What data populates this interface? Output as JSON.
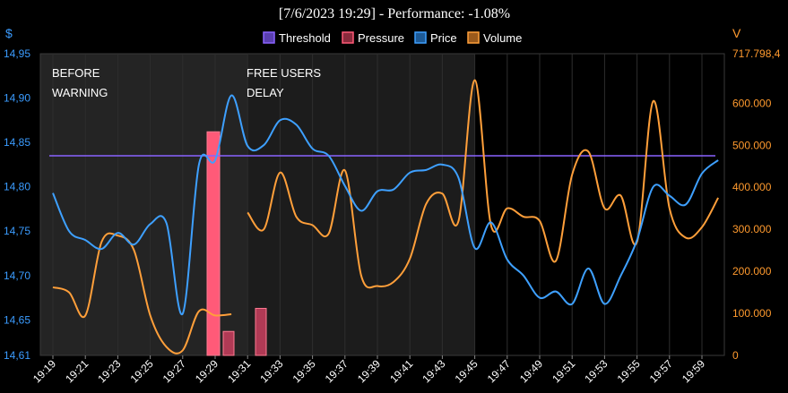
{
  "title": "[7/6/2023 19:29] - Performance: -1.08%",
  "colors": {
    "threshold": "#8a63ff",
    "pressure": "#ff5a78",
    "price": "#3ea0ff",
    "volume": "#ff9f3a",
    "left_axis": "#3b9cff",
    "right_axis": "#ff9a2e"
  },
  "chart_data": {
    "type": "line",
    "title": "[7/6/2023 19:29] - Performance: -1.08%",
    "left_axis_label": "$",
    "right_axis_label": "V",
    "legend": [
      "Threshold",
      "Pressure",
      "Price",
      "Volume"
    ],
    "legend_position": "top-center",
    "y_left": {
      "min": 14.61,
      "max": 14.95,
      "ticks": [
        "14,95",
        "14,90",
        "14,85",
        "14,80",
        "14,75",
        "14,70",
        "14,65",
        "14,61"
      ],
      "tick_values": [
        14.95,
        14.9,
        14.85,
        14.8,
        14.75,
        14.7,
        14.65,
        14.61
      ]
    },
    "y_right": {
      "min": 0,
      "max": 717798.4,
      "ticks": [
        "717.798,4",
        "600.000",
        "500.000",
        "400.000",
        "300.000",
        "200.000",
        "100.000",
        "0"
      ],
      "tick_values": [
        717798.4,
        600000,
        500000,
        400000,
        300000,
        200000,
        100000,
        0
      ]
    },
    "x_ticks": [
      "19:19",
      "19:21",
      "19:23",
      "19:25",
      "19:27",
      "19:29",
      "19:31",
      "19:33",
      "19:35",
      "19:37",
      "19:39",
      "19:41",
      "19:43",
      "19:45",
      "19:47",
      "19:49",
      "19:51",
      "19:53",
      "19:55",
      "19:57",
      "19:59"
    ],
    "x_range": [
      0,
      41.8
    ],
    "shaded_regions": [
      {
        "from": 0,
        "to": 12,
        "label": [
          "BEFORE",
          "WARNING"
        ]
      },
      {
        "from": 12,
        "to": 26,
        "label": [
          "FREE USERS",
          "DELAY"
        ]
      }
    ],
    "threshold": 14.835,
    "pressure": [
      {
        "x": 10,
        "value": 14.862
      },
      {
        "x": 11,
        "value": 14.637
      },
      {
        "x": 13,
        "value": 14.663
      }
    ],
    "price": [
      {
        "x": 0,
        "y": 14.793
      },
      {
        "x": 1,
        "y": 14.75
      },
      {
        "x": 2,
        "y": 14.74
      },
      {
        "x": 3,
        "y": 14.73
      },
      {
        "x": 4,
        "y": 14.748
      },
      {
        "x": 5,
        "y": 14.735
      },
      {
        "x": 6,
        "y": 14.758
      },
      {
        "x": 7,
        "y": 14.759
      },
      {
        "x": 8,
        "y": 14.657
      },
      {
        "x": 9,
        "y": 14.825
      },
      {
        "x": 10,
        "y": 14.83
      },
      {
        "x": 11,
        "y": 14.903
      },
      {
        "x": 12,
        "y": 14.846
      },
      {
        "x": 13,
        "y": 14.847
      },
      {
        "x": 14,
        "y": 14.875
      },
      {
        "x": 15,
        "y": 14.87
      },
      {
        "x": 16,
        "y": 14.843
      },
      {
        "x": 17,
        "y": 14.835
      },
      {
        "x": 18,
        "y": 14.801
      },
      {
        "x": 19,
        "y": 14.773
      },
      {
        "x": 20,
        "y": 14.795
      },
      {
        "x": 21,
        "y": 14.797
      },
      {
        "x": 22,
        "y": 14.816
      },
      {
        "x": 23,
        "y": 14.819
      },
      {
        "x": 24,
        "y": 14.825
      },
      {
        "x": 25,
        "y": 14.81
      },
      {
        "x": 26,
        "y": 14.731
      },
      {
        "x": 27,
        "y": 14.76
      },
      {
        "x": 28,
        "y": 14.718
      },
      {
        "x": 29,
        "y": 14.7
      },
      {
        "x": 30,
        "y": 14.675
      },
      {
        "x": 31,
        "y": 14.682
      },
      {
        "x": 32,
        "y": 14.668
      },
      {
        "x": 33,
        "y": 14.708
      },
      {
        "x": 34,
        "y": 14.668
      },
      {
        "x": 35,
        "y": 14.7
      },
      {
        "x": 36,
        "y": 14.74
      },
      {
        "x": 37,
        "y": 14.8
      },
      {
        "x": 38,
        "y": 14.79
      },
      {
        "x": 39,
        "y": 14.78
      },
      {
        "x": 40,
        "y": 14.815
      },
      {
        "x": 41,
        "y": 14.83
      }
    ],
    "volume_series_1": [
      {
        "x": 0,
        "y": 162000
      },
      {
        "x": 1,
        "y": 150000
      },
      {
        "x": 2,
        "y": 95000
      },
      {
        "x": 3,
        "y": 270000
      },
      {
        "x": 4,
        "y": 285000
      },
      {
        "x": 5,
        "y": 250000
      },
      {
        "x": 6,
        "y": 95000
      },
      {
        "x": 7,
        "y": 20000
      },
      {
        "x": 8,
        "y": 12000
      },
      {
        "x": 9,
        "y": 105000
      },
      {
        "x": 10,
        "y": 95000
      },
      {
        "x": 11,
        "y": 98000
      }
    ],
    "volume_series_2": [
      {
        "x": 12,
        "y": 340000
      },
      {
        "x": 13,
        "y": 300000
      },
      {
        "x": 14,
        "y": 435000
      },
      {
        "x": 15,
        "y": 330000
      },
      {
        "x": 16,
        "y": 310000
      },
      {
        "x": 17,
        "y": 290000
      },
      {
        "x": 18,
        "y": 440000
      },
      {
        "x": 19,
        "y": 190000
      },
      {
        "x": 20,
        "y": 165000
      },
      {
        "x": 21,
        "y": 175000
      },
      {
        "x": 22,
        "y": 230000
      },
      {
        "x": 23,
        "y": 360000
      },
      {
        "x": 24,
        "y": 385000
      },
      {
        "x": 25,
        "y": 320000
      },
      {
        "x": 26,
        "y": 655000
      },
      {
        "x": 27,
        "y": 310000
      },
      {
        "x": 28,
        "y": 350000
      },
      {
        "x": 29,
        "y": 330000
      },
      {
        "x": 30,
        "y": 320000
      },
      {
        "x": 31,
        "y": 225000
      },
      {
        "x": 32,
        "y": 430000
      },
      {
        "x": 33,
        "y": 485000
      },
      {
        "x": 34,
        "y": 350000
      },
      {
        "x": 35,
        "y": 380000
      },
      {
        "x": 36,
        "y": 270000
      },
      {
        "x": 37,
        "y": 605000
      },
      {
        "x": 38,
        "y": 350000
      },
      {
        "x": 39,
        "y": 280000
      },
      {
        "x": 40,
        "y": 305000
      },
      {
        "x": 41,
        "y": 375000
      }
    ]
  }
}
